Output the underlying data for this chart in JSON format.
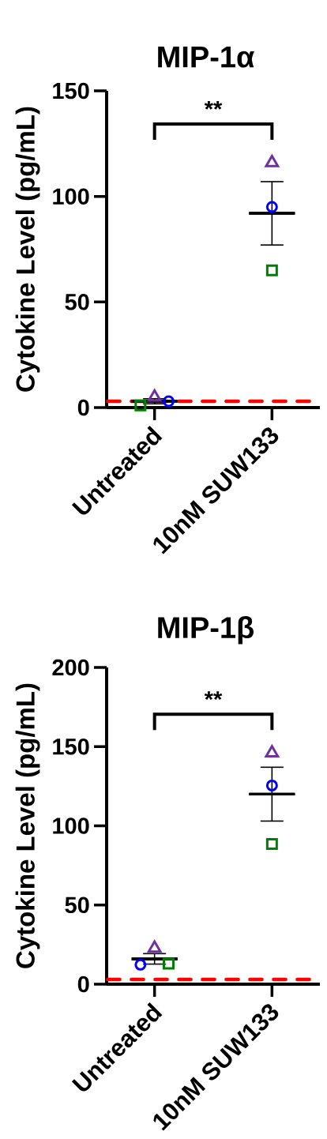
{
  "chart_data": [
    {
      "type": "scatter",
      "title": "MIP-1α",
      "ylabel": "Cytokine Level (pg/mL)",
      "categories": [
        "Untreated",
        "10nM SUW133"
      ],
      "series": [
        {
          "type": "box",
          "color": "#000000",
          "boxes": [
            {
              "low": 1.8,
              "q1": 3,
              "median": 3,
              "q3": 3,
              "high": 4.2
            },
            {
              "low": 77,
              "q1": 92,
              "median": 92,
              "q3": 92,
              "high": 107
            }
          ]
        },
        {
          "color": "#7030a0",
          "marker": "triangle",
          "values": [
            5,
            116
          ]
        },
        {
          "color": "#0000ff",
          "marker": "circle",
          "values": [
            3,
            95
          ]
        },
        {
          "color": "#008000",
          "marker": "square",
          "values": [
            1,
            65
          ]
        }
      ],
      "ylim": [
        0,
        150
      ],
      "yticks": [
        0,
        50,
        100,
        150
      ],
      "ref_lines": [
        {
          "axis": "y",
          "value": 3,
          "color": "#ff0000",
          "line_style": "dashed"
        }
      ],
      "annotations": [
        "**"
      ]
    },
    {
      "type": "scatter",
      "title": "MIP-1β",
      "ylabel": "Cytokine Level (pg/mL)",
      "categories": [
        "Untreated",
        "10nM SUW133"
      ],
      "series": [
        {
          "type": "box",
          "color": "#000000",
          "boxes": [
            {
              "low": 12.7,
              "q1": 16,
              "median": 16,
              "q3": 16,
              "high": 19.3
            },
            {
              "low": 103,
              "q1": 120,
              "median": 120,
              "q3": 120,
              "high": 137
            }
          ]
        },
        {
          "color": "#7030a0",
          "marker": "triangle",
          "values": [
            22.7,
            146
          ]
        },
        {
          "color": "#0000ff",
          "marker": "circle",
          "values": [
            12.3,
            125.5
          ]
        },
        {
          "color": "#008000",
          "marker": "square",
          "values": [
            13,
            88.5
          ]
        }
      ],
      "ylim": [
        0,
        200
      ],
      "yticks": [
        0,
        50,
        100,
        150,
        200
      ],
      "ref_lines": [
        {
          "axis": "y",
          "value": 3,
          "color": "#ff0000",
          "line_style": "dashed"
        }
      ],
      "annotations": [
        "**"
      ]
    }
  ]
}
